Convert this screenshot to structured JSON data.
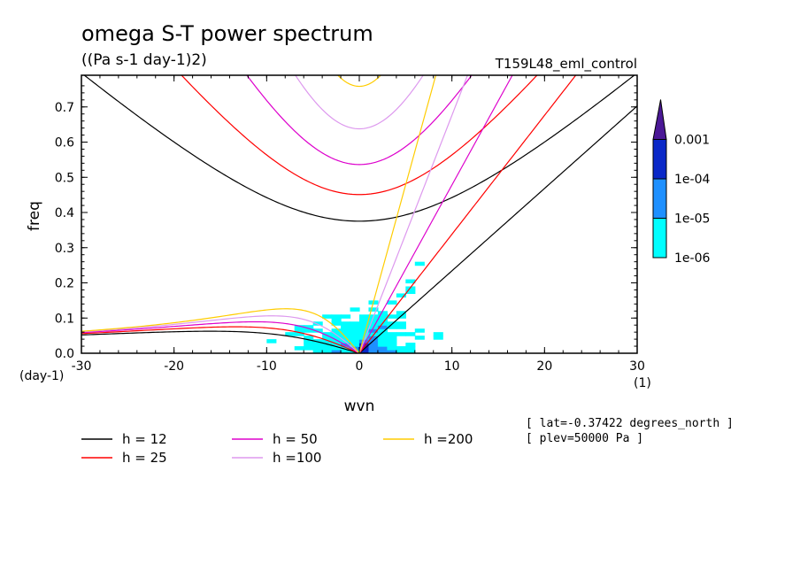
{
  "chart_data": {
    "type": "heatmap",
    "title": "omega S-T power spectrum",
    "units": "((Pa s-1 day-1)2)",
    "experiment": "T159L48_eml_control",
    "xlabel": "wvn",
    "ylabel": "freq",
    "x_unit_label": "(1)",
    "y_unit_label": "(day-1)",
    "xlim": [
      -30,
      30
    ],
    "ylim": [
      0,
      0.79
    ],
    "xticks": [
      -30,
      -20,
      -10,
      0,
      10,
      20,
      30
    ],
    "xtick_labels": [
      "-30",
      "-20",
      "-10",
      "0",
      "10",
      "20",
      "30"
    ],
    "yticks": [
      0,
      0.1,
      0.2,
      0.3,
      0.4,
      0.5,
      0.6,
      0.7
    ],
    "ytick_labels": [
      "0.0",
      "0.1",
      "0.2",
      "0.3",
      "0.4",
      "0.5",
      "0.6",
      "0.7"
    ],
    "colorbar": {
      "levels": [
        "1e-06",
        "1e-05",
        "1e-04",
        "0.001"
      ],
      "colors": [
        "#00ffff",
        "#1e90ff",
        "#0a28c8",
        "#4b1896"
      ]
    },
    "dispersion_curves": [
      {
        "label": "h = 12",
        "h": 12,
        "color": "#000000"
      },
      {
        "label": "h = 25",
        "h": 25,
        "color": "#ff0000"
      },
      {
        "label": "h = 50",
        "h": 50,
        "color": "#dd00cc"
      },
      {
        "label": "h =100",
        "h": 100,
        "color": "#dd99ee"
      },
      {
        "label": "h =200",
        "h": 200,
        "color": "#ffcc00"
      }
    ],
    "annotations": [
      "[ lat=-0.37422 degrees_north ]",
      "[ plev=50000 Pa ]"
    ]
  }
}
